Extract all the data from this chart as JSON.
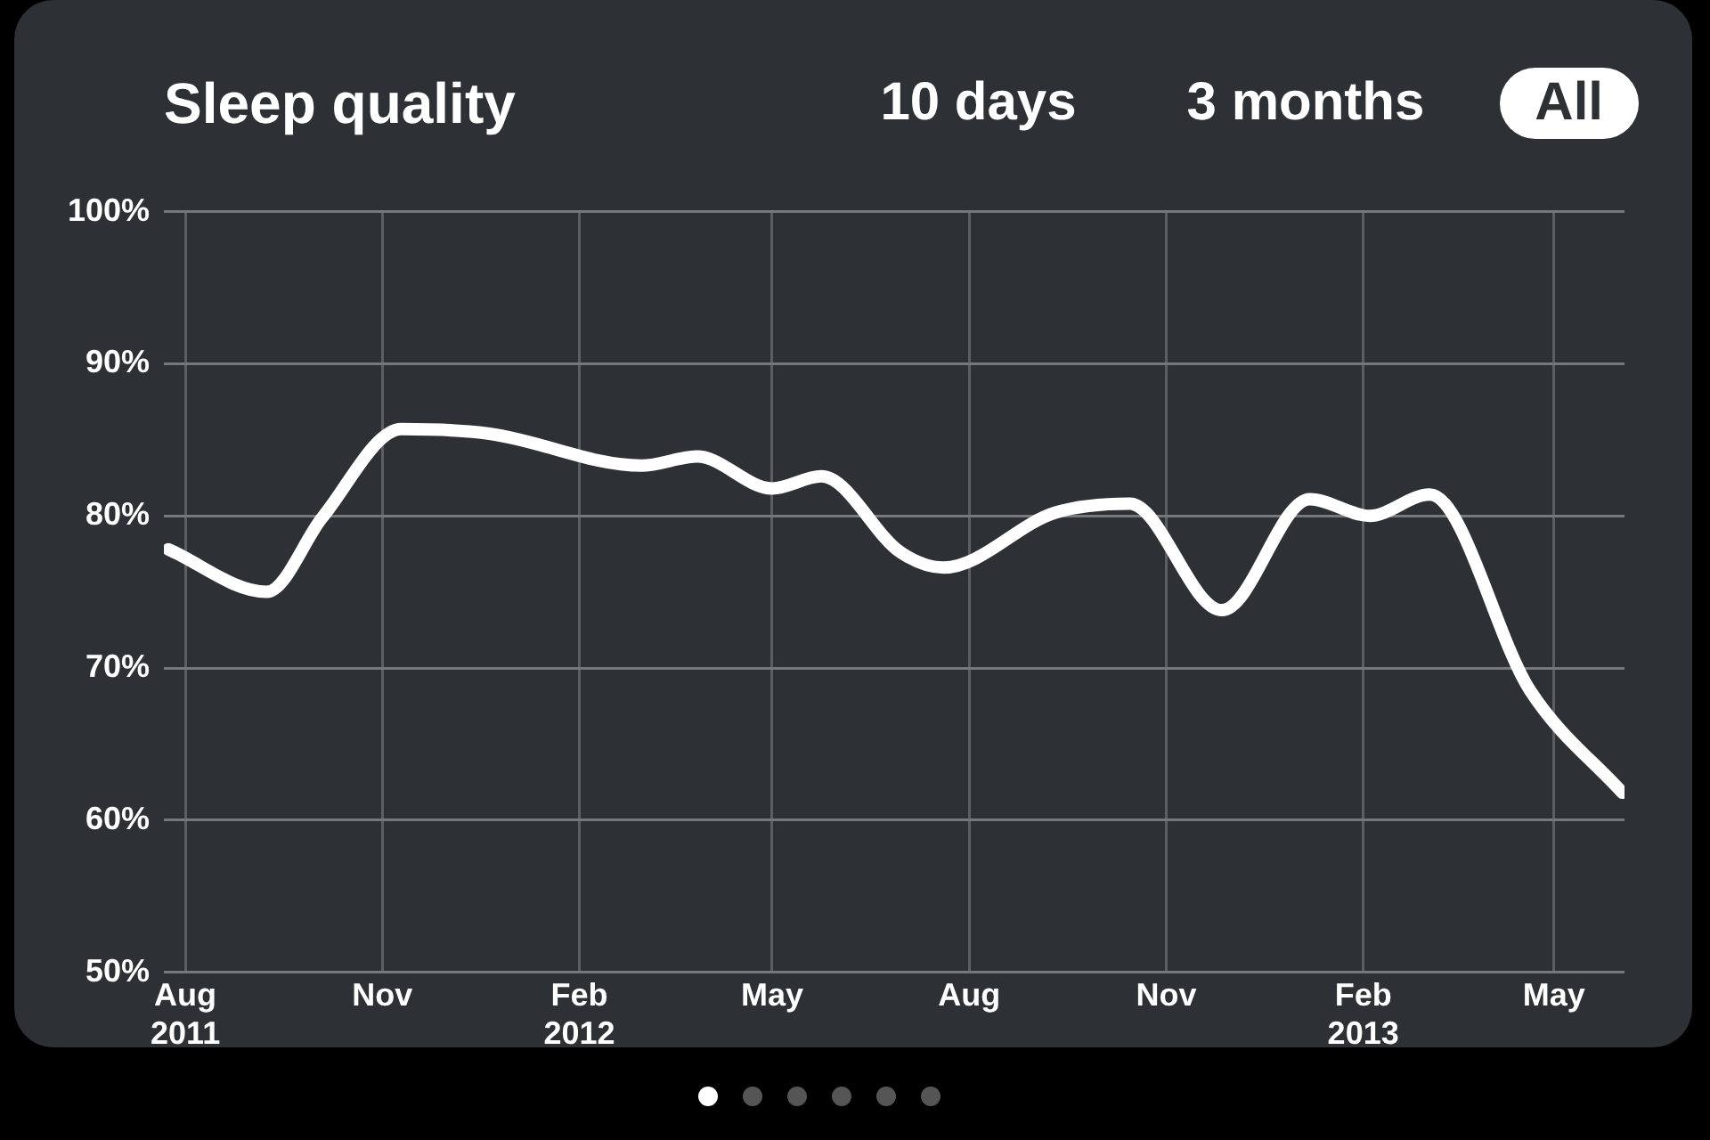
{
  "chart_data": {
    "type": "line",
    "title": "Sleep quality",
    "annotations": [
      "10 days",
      "3 months",
      "All"
    ],
    "x": [
      "2011-07-24",
      "2011-09-08",
      "2011-10-04",
      "2011-11-10",
      "2011-12-21",
      "2012-03-01",
      "2012-03-27",
      "2012-05-01",
      "2012-05-24",
      "2012-06-30",
      "2012-07-20",
      "2012-09-10",
      "2012-10-15",
      "2012-11-27",
      "2013-01-07",
      "2013-02-04",
      "2013-03-04",
      "2013-04-20",
      "2013-06-02"
    ],
    "series": [
      {
        "color": "#ffffff",
        "values": [
          77.8,
          75.0,
          79.9,
          85.7,
          85.4,
          83.3,
          83.9,
          81.8,
          82.6,
          77.6,
          76.6,
          80.2,
          80.8,
          73.8,
          81.1,
          80.0,
          81.4,
          68.5,
          61.8
        ]
      }
    ],
    "xlim": [
      "2011-07-22",
      "2013-06-03"
    ],
    "xticks": [
      {
        "value": "2011-08",
        "label": "Aug 2011"
      },
      {
        "value": "2011-11",
        "label": "Nov"
      },
      {
        "value": "2012-02",
        "label": "Feb 2012"
      },
      {
        "value": "2012-05",
        "label": "May"
      },
      {
        "value": "2012-08",
        "label": "Aug"
      },
      {
        "value": "2012-11",
        "label": "Nov"
      },
      {
        "value": "2013-02",
        "label": "Feb 2013"
      },
      {
        "value": "2013-05",
        "label": "May"
      }
    ],
    "ylim": [
      50,
      100
    ],
    "yticks": [
      {
        "value": 50,
        "label": "50%"
      },
      {
        "value": 60,
        "label": "60%"
      },
      {
        "value": 70,
        "label": "70%"
      },
      {
        "value": 80,
        "label": "80%"
      },
      {
        "value": 90,
        "label": "90%"
      },
      {
        "value": 100,
        "label": "100%"
      }
    ],
    "grid": true,
    "marker": "none",
    "line_style": "solid"
  }
}
